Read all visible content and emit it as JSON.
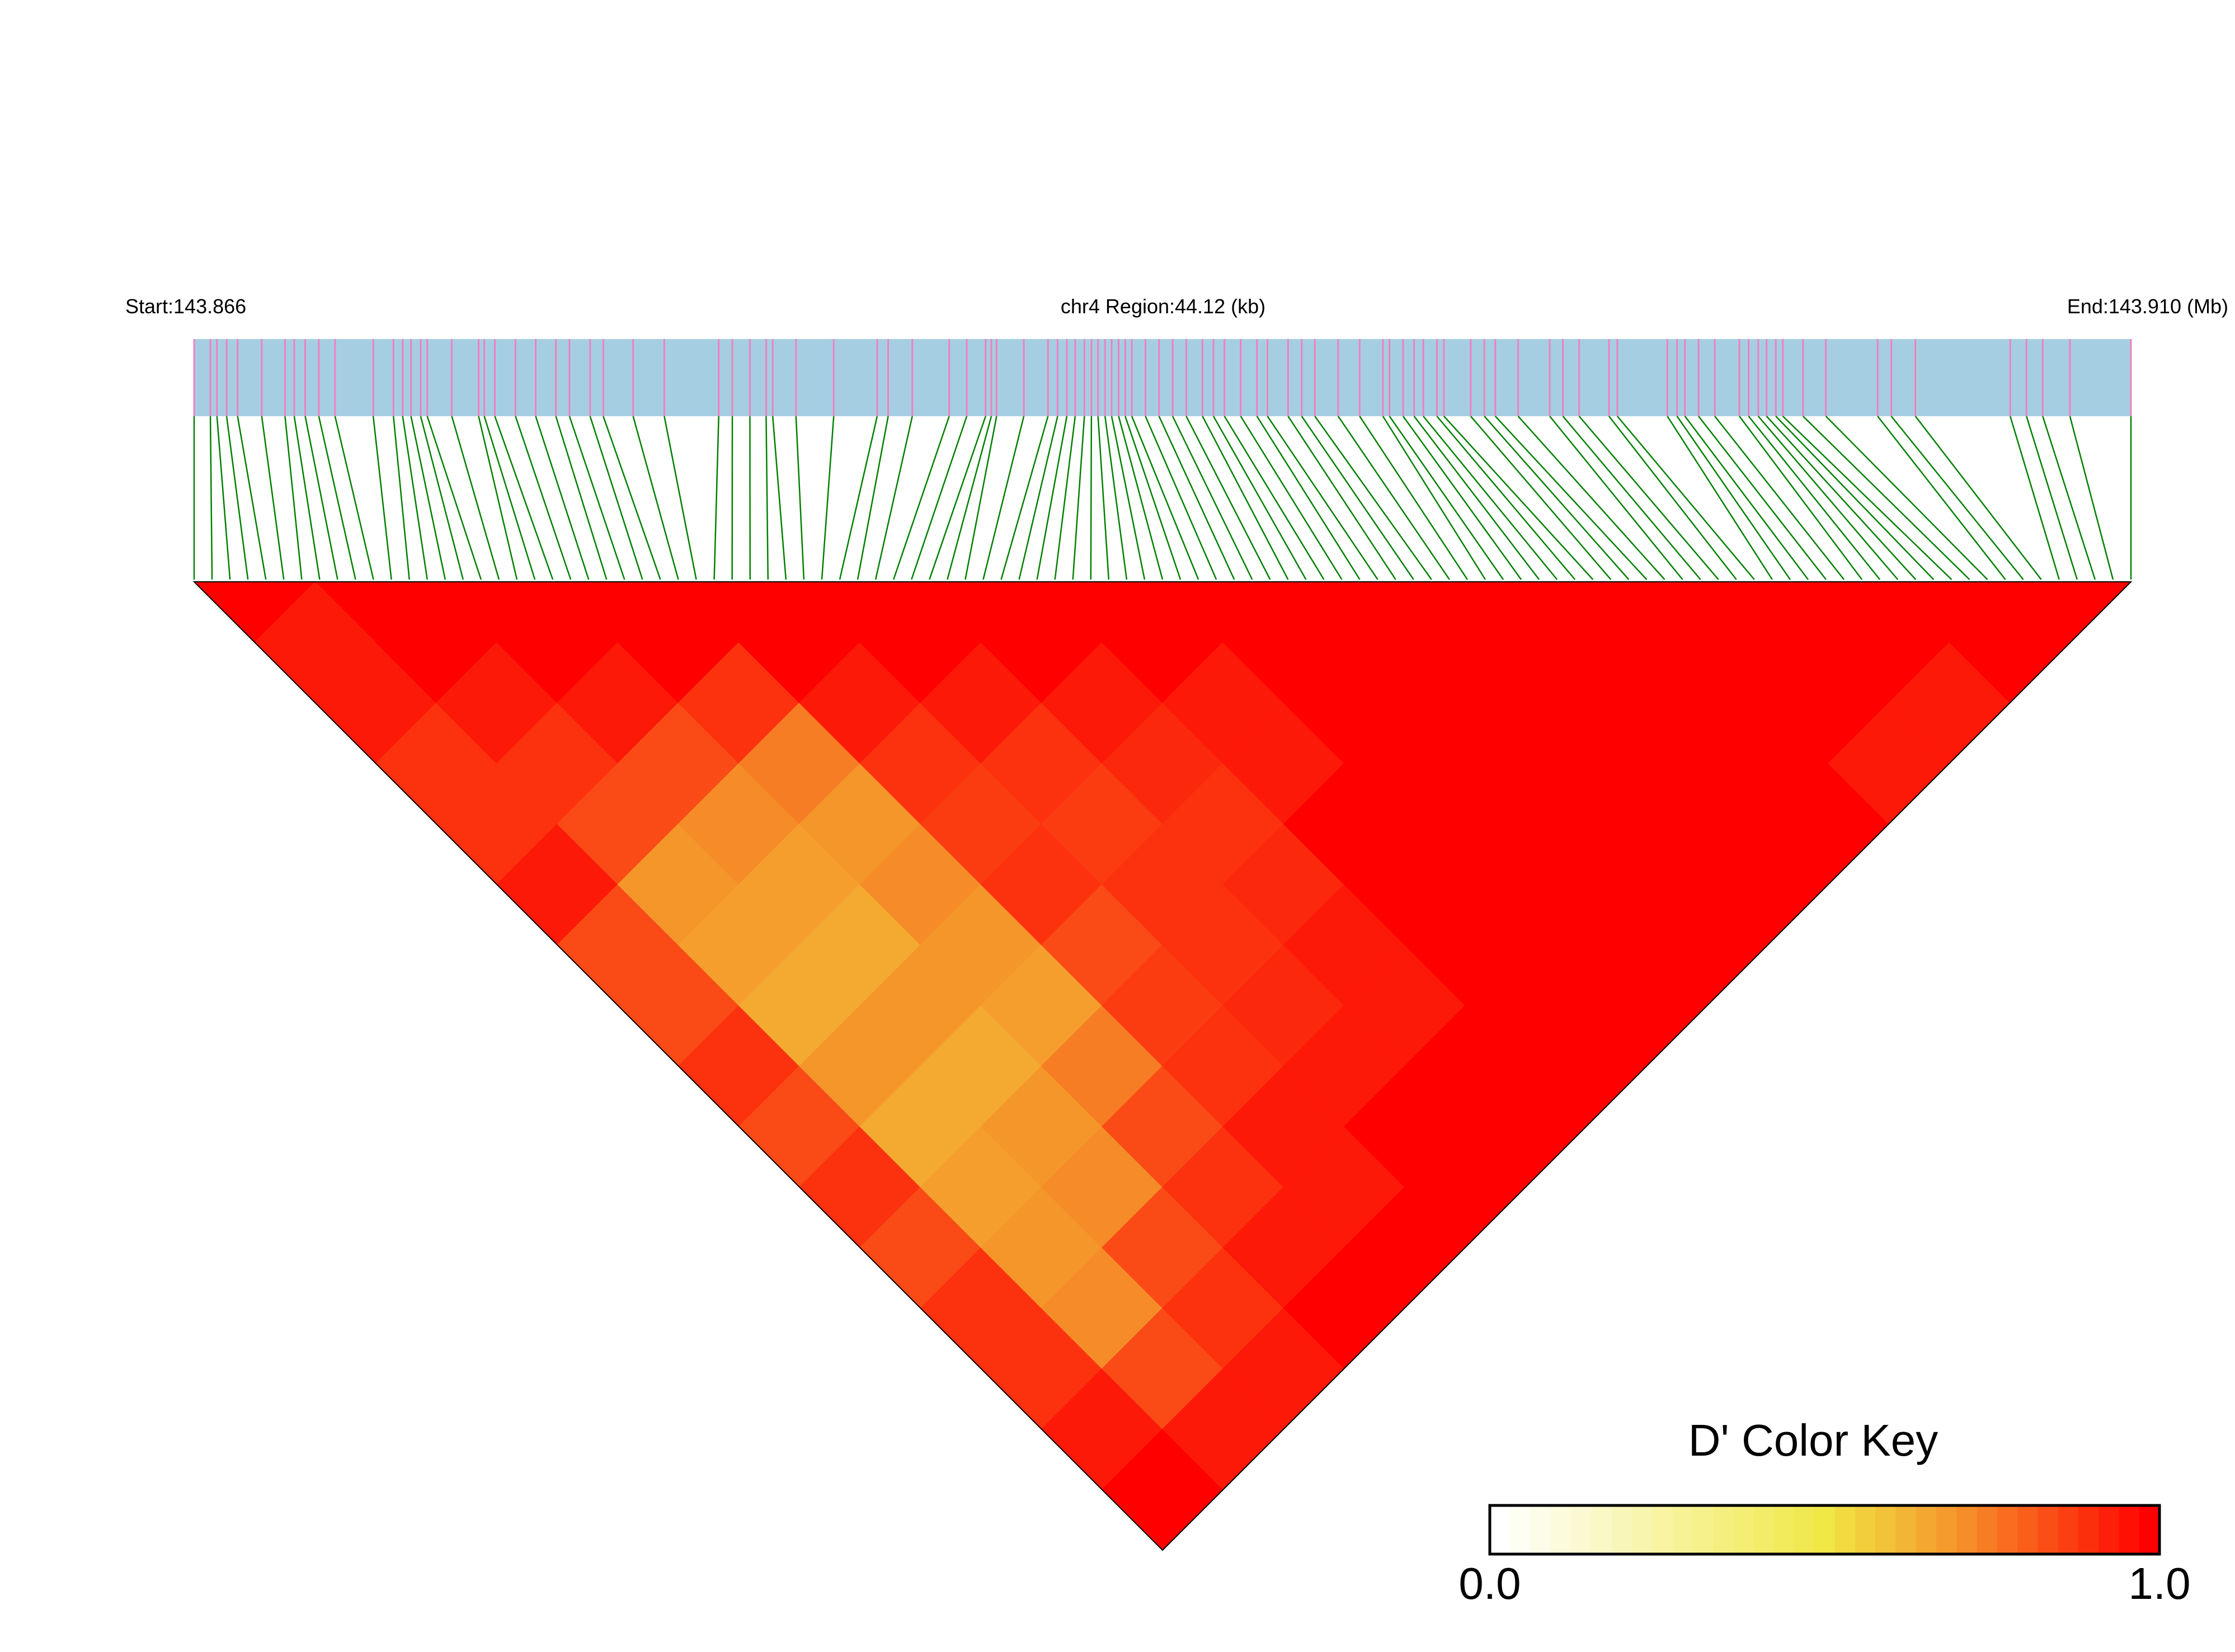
{
  "chart_data": {
    "type": "heatmap",
    "measure": "D'",
    "labels": {
      "start": "Start:143.866",
      "region": "chr4 Region:44.12 (kb)",
      "end": "End:143.910 (Mb)"
    },
    "region_kb": 44.12,
    "snp_positions_kb": [
      0.0,
      0.37,
      0.52,
      0.74,
      0.99,
      1.54,
      2.07,
      2.28,
      2.53,
      2.84,
      3.21,
      4.08,
      4.54,
      4.75,
      4.94,
      5.16,
      5.31,
      5.87,
      6.48,
      6.61,
      6.85,
      7.32,
      7.78,
      8.24,
      8.55,
      9.02,
      9.32,
      10.0,
      10.71,
      11.95,
      12.26,
      12.66,
      13.03,
      13.18,
      13.71,
      14.57,
      15.56,
      15.81,
      16.36,
      17.2,
      17.6,
      18.03,
      18.16,
      18.28,
      18.9,
      19.45,
      19.67,
      19.88,
      20.07,
      20.28,
      20.44,
      20.59,
      20.75,
      20.9,
      21.06,
      21.21,
      21.36,
      21.67,
      21.98,
      22.29,
      22.6,
      22.97,
      23.22,
      23.47,
      23.84,
      24.21,
      24.45,
      24.92,
      25.23,
      25.53,
      26.06,
      26.55,
      27.08,
      27.23,
      27.54,
      27.79,
      28.0,
      28.31,
      28.47,
      29.08,
      29.39,
      29.64,
      30.16,
      30.88,
      31.18,
      31.55,
      32.23,
      32.42,
      33.56,
      33.78,
      33.96,
      34.27,
      34.64,
      35.2,
      35.41,
      35.63,
      35.82,
      36.03,
      36.19,
      36.65,
      37.17,
      38.35,
      38.66,
      39.21,
      41.37,
      41.74,
      42.11,
      42.73,
      44.12
    ],
    "binned_d_prime_upper": [
      [
        0.95,
        0.95,
        0.9,
        0.9,
        0.95,
        0.85,
        0.85,
        0.9,
        0.85,
        0.9,
        0.85,
        0.9,
        0.9,
        0.95,
        1
      ],
      [
        1,
        0.95,
        0.9,
        0.85,
        0.7,
        0.68,
        0.65,
        0.7,
        0.65,
        0.68,
        0.7,
        0.72,
        0.85,
        0.95
      ],
      [
        1,
        0.95,
        0.85,
        0.72,
        0.68,
        0.65,
        0.7,
        0.65,
        0.7,
        0.72,
        0.85,
        0.9,
        0.95
      ],
      [
        1,
        0.9,
        0.75,
        0.7,
        0.72,
        0.7,
        0.68,
        0.75,
        0.85,
        0.9,
        0.95,
        1
      ],
      [
        1,
        0.95,
        0.9,
        0.88,
        0.9,
        0.85,
        0.88,
        0.9,
        0.95,
        0.95,
        1
      ],
      [
        1,
        0.95,
        0.9,
        0.88,
        0.9,
        0.9,
        0.92,
        0.95,
        1,
        1
      ],
      [
        1,
        0.95,
        0.92,
        0.9,
        0.92,
        0.95,
        0.95,
        1,
        1
      ],
      [
        1,
        0.95,
        0.95,
        1,
        1,
        1,
        1,
        1
      ],
      [
        1,
        1,
        1,
        1,
        1,
        1,
        1
      ],
      [
        1,
        1,
        1,
        1,
        1,
        1
      ],
      [
        1,
        1,
        1,
        1,
        1
      ],
      [
        1,
        1,
        1,
        1
      ],
      [
        1,
        1,
        0.95
      ],
      [
        1,
        0.95
      ],
      [
        1
      ]
    ],
    "color_key": {
      "title": "D' Color Key",
      "min_label": "0.0",
      "max_label": "1.0",
      "range": [
        0,
        1
      ],
      "colors": {
        "low": "#ffffff",
        "mid": "#f0e845",
        "high": "#ff0000"
      }
    },
    "colors": {
      "snp_bar": "#a6cee3",
      "snp_mark": "#f080c0",
      "connector": "#008000"
    }
  }
}
